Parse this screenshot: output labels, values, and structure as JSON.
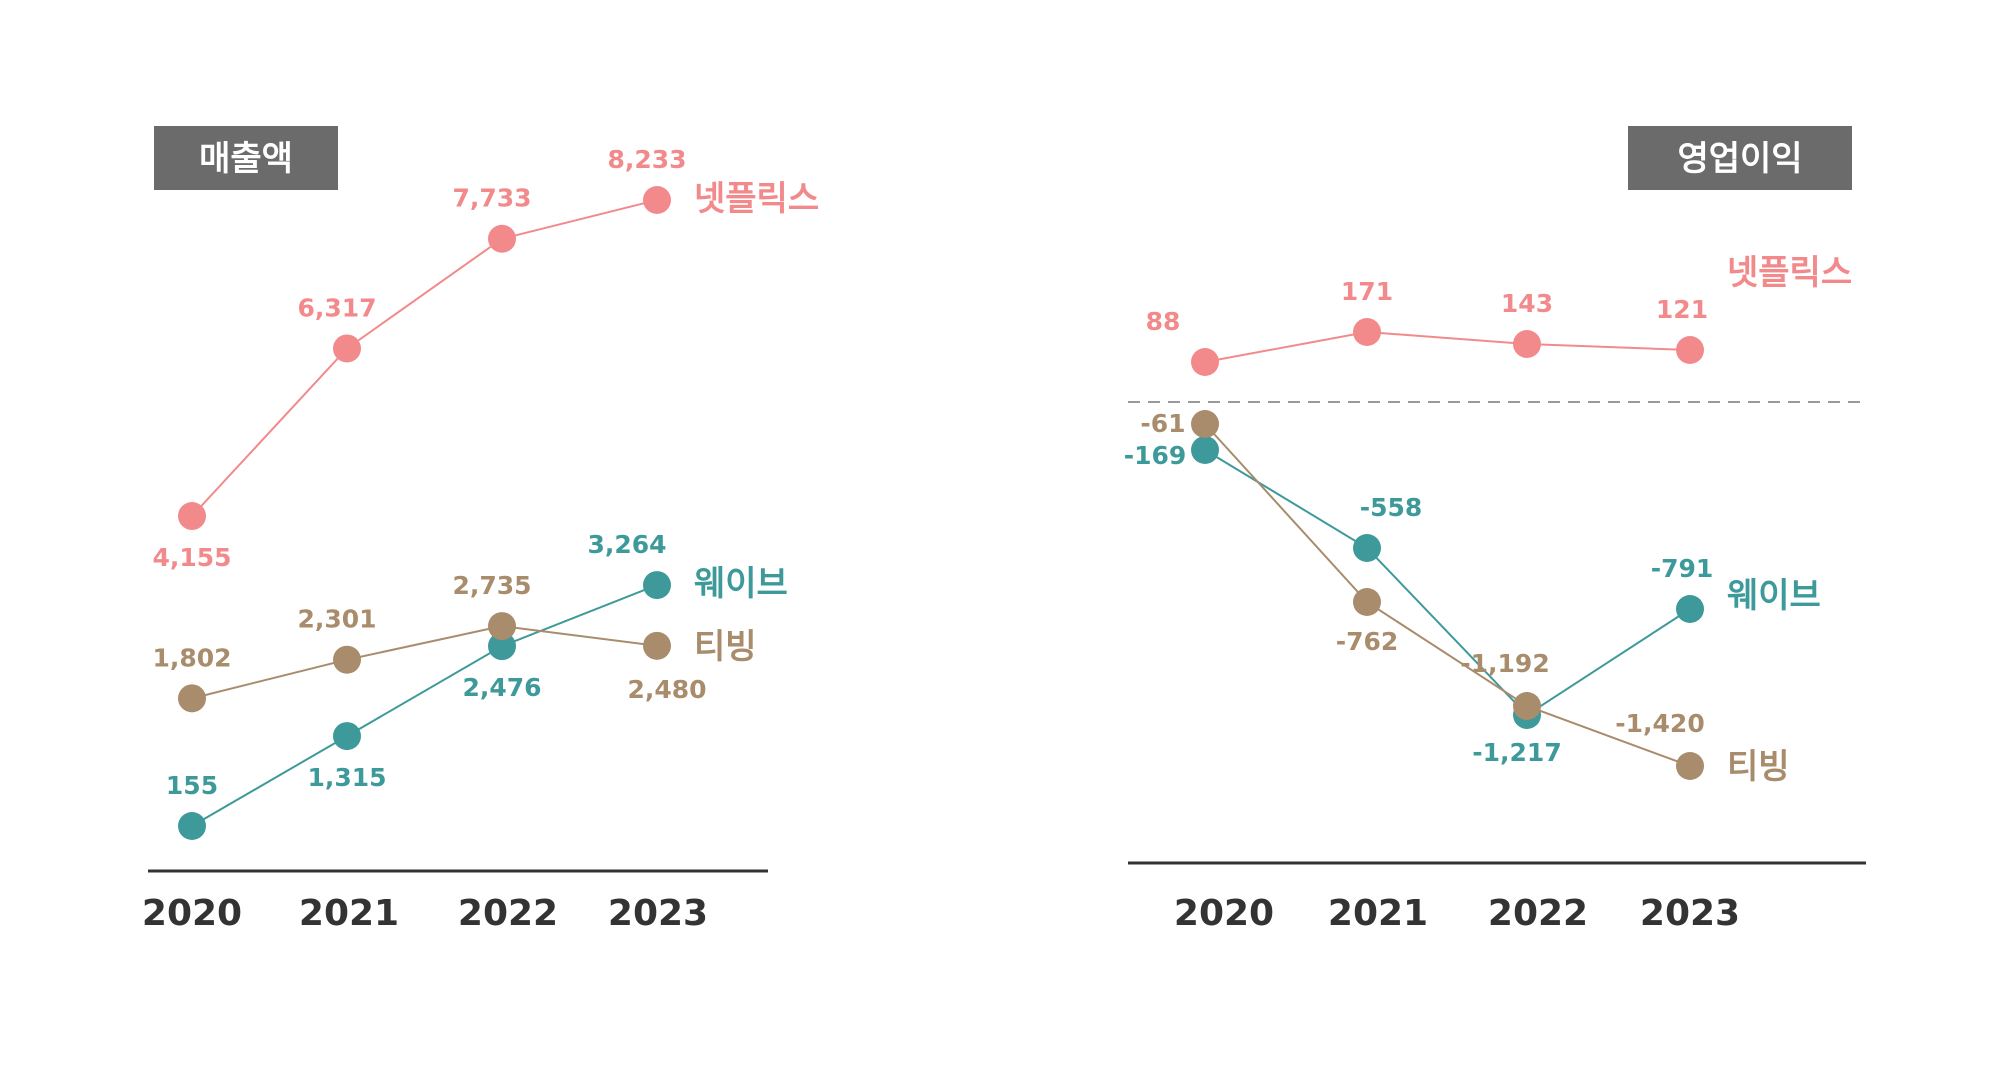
{
  "colors": {
    "netflix": "#F28A8C",
    "wavve": "#3E9A9A",
    "tving": "#A88C6C",
    "title_box": "#6B6B6B",
    "axis": "#333333",
    "dashed": "#999999"
  },
  "chart_data": [
    {
      "type": "line",
      "title": "매출액",
      "x": [
        "2020",
        "2021",
        "2022",
        "2023"
      ],
      "series": [
        {
          "name": "넷플릭스",
          "color": "netflix",
          "values": [
            4155,
            6317,
            7733,
            8233
          ],
          "labels": [
            "4,155",
            "6,317",
            "7,733",
            "8,233"
          ]
        },
        {
          "name": "웨이브",
          "color": "wavve",
          "values": [
            155,
            1315,
            2476,
            3264
          ],
          "labels": [
            "155",
            "1,315",
            "2,476",
            "3,264"
          ]
        },
        {
          "name": "티빙",
          "color": "tving",
          "values": [
            1802,
            2301,
            2735,
            2480
          ],
          "labels": [
            "1,802",
            "2,301",
            "2,735",
            "2,480"
          ]
        }
      ],
      "axis_line": "bottom",
      "grid": false
    },
    {
      "type": "line",
      "title": "영업이익",
      "x": [
        "2020",
        "2021",
        "2022",
        "2023"
      ],
      "series": [
        {
          "name": "넷플릭스",
          "color": "netflix",
          "values": [
            88,
            171,
            143,
            121
          ],
          "labels": [
            "88",
            "171",
            "143",
            "121"
          ]
        },
        {
          "name": "웨이브",
          "color": "wavve",
          "values": [
            -169,
            -558,
            -1217,
            -791
          ],
          "labels": [
            "-169",
            "-558",
            "-1,217",
            "-791"
          ]
        },
        {
          "name": "티빙",
          "color": "tving",
          "values": [
            -61,
            -762,
            -1192,
            -1420
          ],
          "labels": [
            "-61",
            "-762",
            "-1,192",
            "-1,420"
          ]
        }
      ],
      "axis_line": "bottom",
      "zero_line": "dashed, separates netflix from domestic OTT",
      "grid": false
    }
  ]
}
